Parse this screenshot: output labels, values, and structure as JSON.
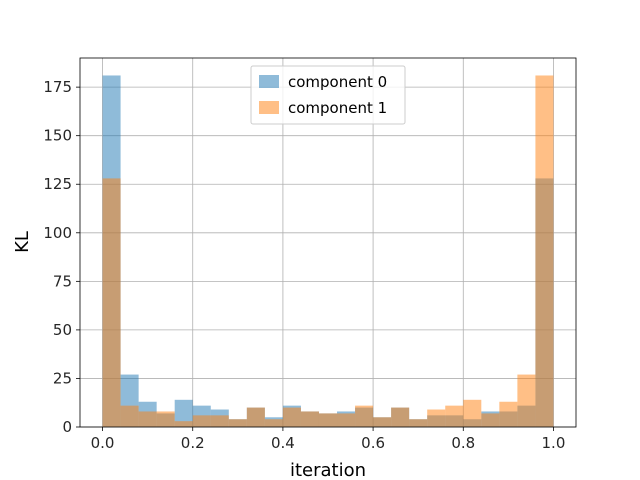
{
  "chart_data": {
    "type": "bar",
    "subtype": "overlapping histogram",
    "xlabel": "iteration",
    "ylabel": "KL",
    "xlim": [
      -0.05,
      1.05
    ],
    "ylim": [
      0,
      190
    ],
    "xticks": [
      "0.0",
      "0.2",
      "0.4",
      "0.6",
      "0.8",
      "1.0"
    ],
    "xtick_values": [
      0.0,
      0.2,
      0.4,
      0.6,
      0.8,
      1.0
    ],
    "yticks": [
      "0",
      "25",
      "50",
      "75",
      "100",
      "125",
      "150",
      "175"
    ],
    "ytick_values": [
      0,
      25,
      50,
      75,
      100,
      125,
      150,
      175
    ],
    "grid": true,
    "legend_position": "top-center",
    "bins": 25,
    "bin_range": [
      0,
      1
    ],
    "series": [
      {
        "name": "component 0",
        "color": "#1f77b4",
        "values": [
          181,
          27,
          13,
          7,
          14,
          11,
          9,
          4,
          10,
          5,
          11,
          8,
          7,
          8,
          10,
          5,
          10,
          4,
          6,
          6,
          4,
          8,
          8,
          11,
          128
        ]
      },
      {
        "name": "component 1",
        "color": "#ff7f0e",
        "values": [
          128,
          11,
          8,
          8,
          3,
          6,
          6,
          4,
          10,
          4,
          10,
          8,
          7,
          7,
          11,
          5,
          10,
          4,
          9,
          11,
          14,
          7,
          13,
          27,
          181
        ]
      }
    ]
  }
}
